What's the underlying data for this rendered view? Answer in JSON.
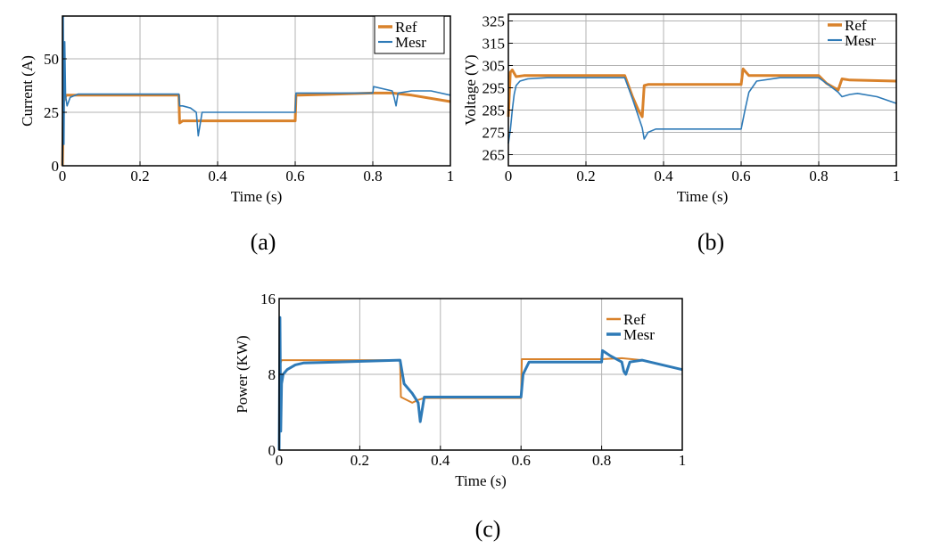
{
  "colors": {
    "ref": "#d9822b",
    "mesr": "#2e7ab7"
  },
  "chart_data": [
    {
      "panel": "a",
      "caption": "(a)",
      "type": "line",
      "xlabel": "Time (s)",
      "ylabel": "Current (A)",
      "xlim": [
        0,
        1
      ],
      "ylim": [
        0,
        70
      ],
      "xticks": [
        0,
        0.2,
        0.4,
        0.6,
        0.8,
        1
      ],
      "xtick_labels": [
        "0",
        "0.2",
        "0.4",
        "0.6",
        "0.8",
        "1"
      ],
      "yticks": [
        0,
        25,
        50
      ],
      "ytick_labels": [
        "0",
        "25",
        "50"
      ],
      "grid": true,
      "legend": "top-right",
      "series": [
        {
          "name": "Ref",
          "color_key": "ref",
          "width": 3,
          "x": [
            0,
            0.003,
            0.006,
            0.01,
            0.3,
            0.302,
            0.31,
            0.6,
            0.602,
            0.61,
            0.8,
            0.85,
            0.9,
            1.0
          ],
          "y": [
            0,
            30,
            31.5,
            33,
            33,
            20,
            21,
            21,
            33,
            33,
            34,
            34,
            33,
            30
          ]
        },
        {
          "name": "Mesr",
          "color_key": "mesr",
          "width": 1.6,
          "x": [
            0,
            0.002,
            0.004,
            0.006,
            0.008,
            0.012,
            0.02,
            0.04,
            0.3,
            0.302,
            0.31,
            0.33,
            0.345,
            0.35,
            0.36,
            0.4,
            0.6,
            0.602,
            0.61,
            0.8,
            0.802,
            0.85,
            0.855,
            0.86,
            0.865,
            0.9,
            0.95,
            1.0
          ],
          "y": [
            0,
            70,
            10,
            58,
            33,
            28,
            32,
            33.5,
            33.5,
            28,
            28,
            27,
            25,
            14,
            25,
            25,
            25,
            34,
            34,
            34,
            37,
            35,
            32,
            28,
            34,
            35,
            35,
            33
          ]
        }
      ]
    },
    {
      "panel": "b",
      "caption": "(b)",
      "type": "line",
      "xlabel": "Time (s)",
      "ylabel": "Voltage (V)",
      "xlim": [
        0,
        1
      ],
      "ylim": [
        260,
        328
      ],
      "xticks": [
        0,
        0.2,
        0.4,
        0.6,
        0.8,
        1
      ],
      "xtick_labels": [
        "0",
        "0.2",
        "0.4",
        "0.6",
        "0.8",
        "1"
      ],
      "yticks": [
        265,
        275,
        285,
        295,
        305,
        315,
        325
      ],
      "ytick_labels": [
        "265",
        "275",
        "285",
        "295",
        "305",
        "315",
        "325"
      ],
      "grid": true,
      "legend": "top-right",
      "series": [
        {
          "name": "Ref",
          "color_key": "ref",
          "width": 3,
          "x": [
            0,
            0.005,
            0.01,
            0.02,
            0.04,
            0.3,
            0.32,
            0.335,
            0.345,
            0.35,
            0.36,
            0.6,
            0.605,
            0.62,
            0.65,
            0.8,
            0.82,
            0.85,
            0.86,
            0.88,
            1.0
          ],
          "y": [
            282,
            302,
            303,
            300,
            300.5,
            300.5,
            291,
            285,
            282,
            296,
            296.5,
            296.5,
            303.5,
            300.5,
            300.5,
            300.5,
            297,
            294,
            299,
            298.5,
            298
          ]
        },
        {
          "name": "Mesr",
          "color_key": "mesr",
          "width": 1.6,
          "x": [
            0,
            0.005,
            0.01,
            0.015,
            0.02,
            0.03,
            0.05,
            0.1,
            0.3,
            0.32,
            0.345,
            0.35,
            0.36,
            0.38,
            0.6,
            0.61,
            0.62,
            0.64,
            0.7,
            0.8,
            0.82,
            0.85,
            0.86,
            0.88,
            0.9,
            0.95,
            1.0
          ],
          "y": [
            270,
            276,
            285,
            292,
            296,
            298,
            299,
            299.5,
            299.5,
            290,
            277,
            272,
            275,
            276.5,
            276.5,
            285,
            293,
            298,
            299.5,
            299.5,
            297,
            293,
            291,
            292,
            292.5,
            291,
            288
          ]
        }
      ]
    },
    {
      "panel": "c",
      "caption": "(c)",
      "type": "line",
      "xlabel": "Time (s)",
      "ylabel": "Power (KW)",
      "xlim": [
        0,
        1
      ],
      "ylim": [
        0,
        16
      ],
      "xticks": [
        0,
        0.2,
        0.4,
        0.6,
        0.8,
        1
      ],
      "xtick_labels": [
        "0",
        "0.2",
        "0.4",
        "0.6",
        "0.8",
        "1"
      ],
      "yticks": [
        0,
        8,
        16
      ],
      "ytick_labels": [
        "0",
        "8",
        "16"
      ],
      "grid": true,
      "legend": "top-right",
      "series": [
        {
          "name": "Ref",
          "color_key": "ref",
          "width": 2,
          "x": [
            0,
            0.002,
            0.006,
            0.01,
            0.3,
            0.302,
            0.33,
            0.345,
            0.36,
            0.6,
            0.602,
            0.62,
            0.8,
            0.85,
            0.9,
            1.0
          ],
          "y": [
            0,
            9,
            9.5,
            9.5,
            9.5,
            5.6,
            5,
            5.3,
            5.5,
            5.5,
            9.6,
            9.6,
            9.6,
            9.7,
            9.5,
            8.5
          ]
        },
        {
          "name": "Mesr",
          "color_key": "mesr",
          "width": 3,
          "x": [
            0,
            0.002,
            0.004,
            0.006,
            0.01,
            0.02,
            0.04,
            0.06,
            0.3,
            0.31,
            0.33,
            0.345,
            0.35,
            0.36,
            0.6,
            0.605,
            0.62,
            0.8,
            0.802,
            0.82,
            0.85,
            0.855,
            0.86,
            0.87,
            0.9,
            1.0
          ],
          "y": [
            0,
            14,
            2,
            7,
            8,
            8.5,
            9,
            9.2,
            9.5,
            7,
            6,
            5,
            3,
            5.6,
            5.6,
            8,
            9.3,
            9.3,
            10.5,
            10,
            9.3,
            8.3,
            8,
            9.3,
            9.5,
            8.5
          ]
        }
      ]
    }
  ]
}
